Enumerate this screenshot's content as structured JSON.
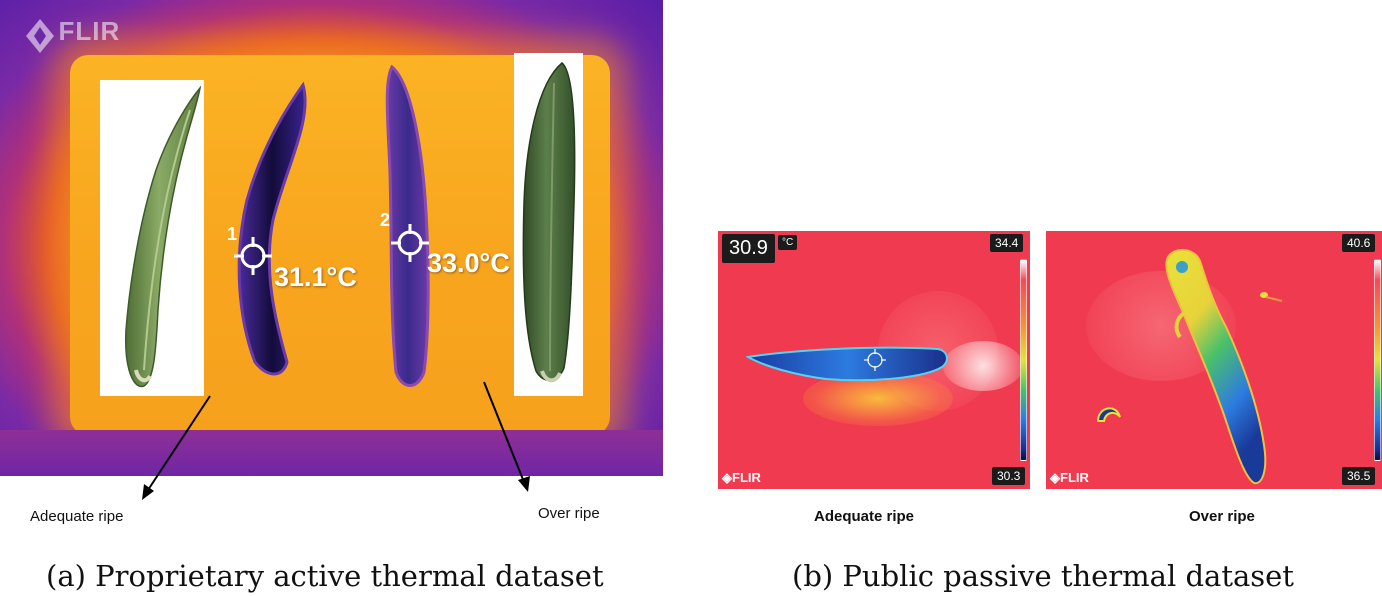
{
  "panel_a": {
    "logo": "FLIR",
    "spot1": {
      "number": "1",
      "temperature": "31.1°C"
    },
    "spot2": {
      "number": "2",
      "temperature": "33.0°C"
    },
    "label_left": "Adequate ripe",
    "label_right": "Over ripe",
    "caption": "(a) Proprietary active thermal dataset"
  },
  "panel_b": {
    "left_image": {
      "reading": "30.9",
      "unit": "°C",
      "scale_max": "34.4",
      "scale_min": "30.3",
      "logo": "FLIR",
      "label": "Adequate ripe"
    },
    "right_image": {
      "scale_max": "40.6",
      "scale_min": "36.5",
      "logo": "FLIR",
      "label": "Over ripe"
    },
    "caption": "(b) Public passive thermal dataset"
  },
  "colors": {
    "thermal_hot": "#f7a21f",
    "thermal_cold": "#5a1fa8",
    "okra_cold": "#1c0f55",
    "passive_background": "#f03a4f",
    "okra_photo_green": "#6f8f4e"
  },
  "icons": [
    "flir-logo-icon",
    "crosshair-icon",
    "arrow-icon",
    "color-scale-icon"
  ]
}
